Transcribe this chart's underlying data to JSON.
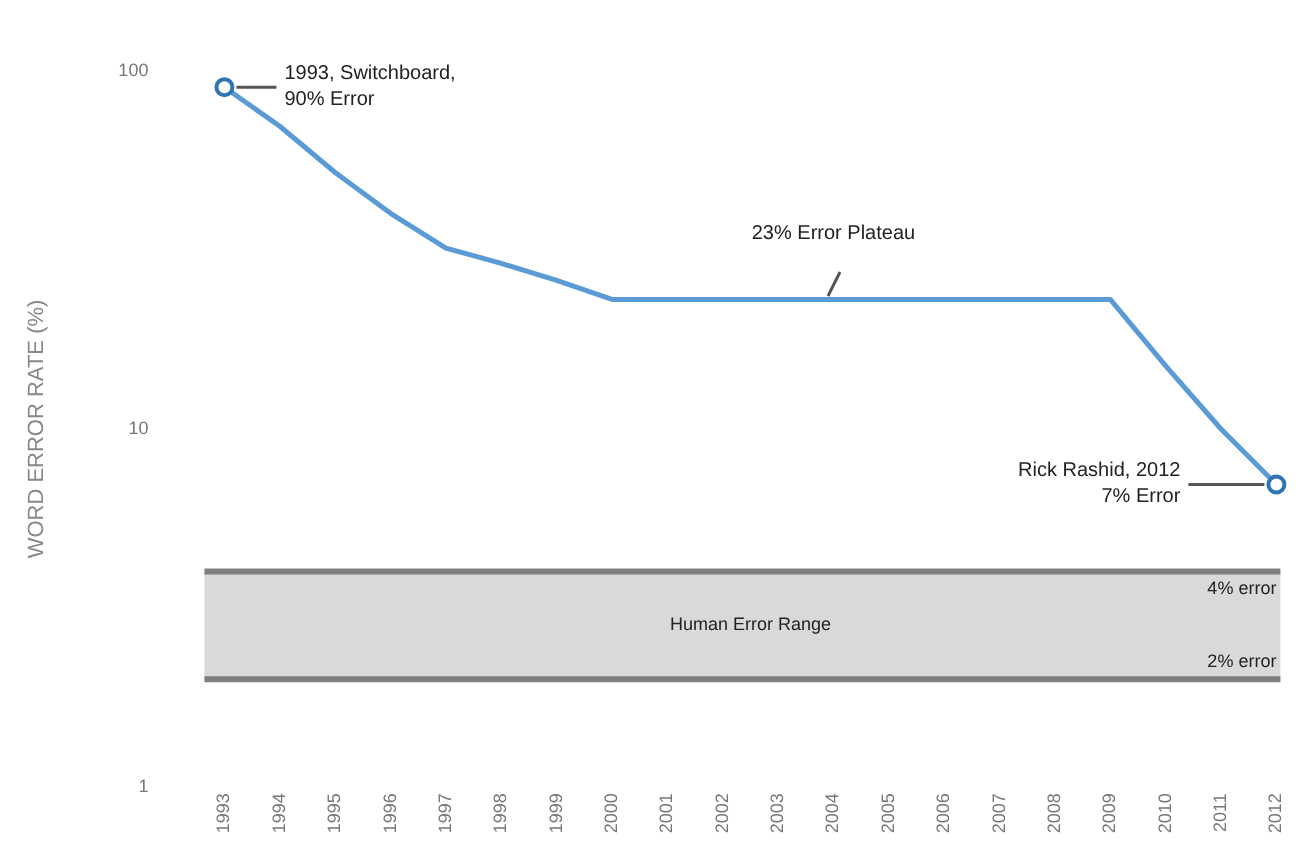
{
  "chart_data": {
    "type": "line",
    "ylabel": "WORD ERROR RATE (%)",
    "categories": [
      "1993",
      "1994",
      "1995",
      "1996",
      "1997",
      "1998",
      "1999",
      "2000",
      "2001",
      "2002",
      "2003",
      "2004",
      "2005",
      "2006",
      "2007",
      "2008",
      "2009",
      "2010",
      "2011",
      "2012"
    ],
    "series": [
      {
        "color": "#5b9bd5",
        "marker": "none",
        "values": [
          90,
          70,
          52,
          40,
          32,
          29,
          26,
          23,
          23,
          23,
          23,
          23,
          23,
          23,
          23,
          23,
          23,
          15,
          10,
          7
        ]
      },
      {
        "type": "scatter",
        "color": "#2e75b6",
        "marker": "circle",
        "values": [
          90,
          null,
          null,
          null,
          null,
          null,
          null,
          null,
          null,
          null,
          null,
          null,
          null,
          null,
          null,
          null,
          null,
          null,
          null,
          7
        ]
      }
    ],
    "log": "y",
    "ylim": [
      1,
      100
    ],
    "yticks": [
      1,
      10,
      100
    ],
    "grid": false,
    "legend": false,
    "bands": [
      {
        "axis": "y",
        "from": 2,
        "to": 4,
        "label": "Human Error Range",
        "color": "#d9d9d9"
      }
    ],
    "ref_lines": [
      {
        "axis": "y",
        "value": 4,
        "label": "4% error",
        "color": "#7f7f7f"
      },
      {
        "axis": "y",
        "value": 2,
        "label": "2% error",
        "color": "#7f7f7f"
      }
    ],
    "annotations": [
      {
        "text": "1993, Switchboard,\n90% Error",
        "x": "1993",
        "y": 90
      },
      {
        "text": "23% Error Plateau",
        "x": "2004",
        "y": 23
      },
      {
        "text": "Rick Rashid, 2012\n7% Error",
        "x": "2012",
        "y": 7
      }
    ]
  }
}
